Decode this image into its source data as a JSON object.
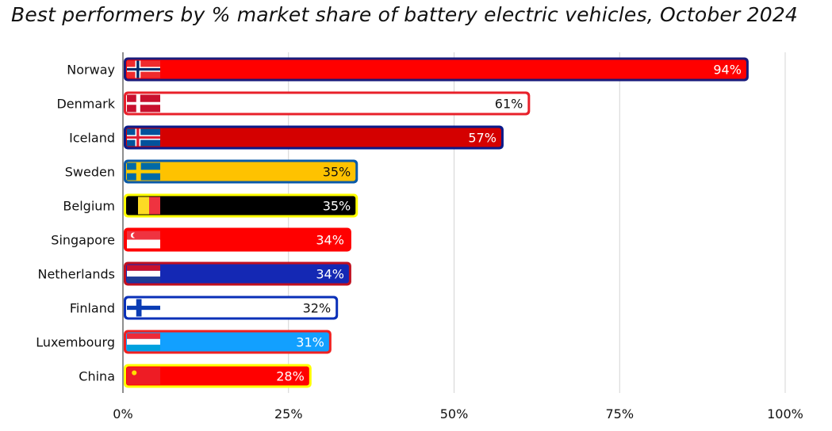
{
  "chart_data": {
    "type": "bar",
    "orientation": "horizontal",
    "title": "Best performers by % market share of battery electric vehicles, October 2024",
    "xlabel": "",
    "ylabel": "",
    "xlim": [
      0,
      100
    ],
    "grid": true,
    "legend": "none",
    "x_ticks": [
      0,
      25,
      50,
      75,
      100
    ],
    "x_tick_labels": [
      "0%",
      "25%",
      "50%",
      "75%",
      "100%"
    ],
    "categories": [
      "Norway",
      "Denmark",
      "Iceland",
      "Sweden",
      "Belgium",
      "Singapore",
      "Netherlands",
      "Finland",
      "Luxembourg",
      "China"
    ],
    "values": [
      94,
      61,
      57,
      35,
      35,
      34,
      34,
      32,
      31,
      28
    ],
    "value_labels": [
      "94%",
      "61%",
      "57%",
      "35%",
      "35%",
      "34%",
      "34%",
      "32%",
      "31%",
      "28%"
    ],
    "bar_styles": [
      {
        "fill": "#ff0000",
        "border": "#1a1a7a",
        "text": "#ffffff",
        "flag": "norway"
      },
      {
        "fill": "#ffffff",
        "border": "#e8202a",
        "text": "#111111",
        "flag": "denmark"
      },
      {
        "fill": "#d40000",
        "border": "#0a1a8a",
        "text": "#ffffff",
        "flag": "iceland"
      },
      {
        "fill": "#fec200",
        "border": "#0a5aa8",
        "text": "#111111",
        "flag": "sweden"
      },
      {
        "fill": "#000000",
        "border": "#ffff00",
        "text": "#ffffff",
        "flag": "belgium"
      },
      {
        "fill": "#ff0000",
        "border": "#ff0000",
        "text": "#ffffff",
        "flag": "singapore"
      },
      {
        "fill": "#1428b4",
        "border": "#c01020",
        "text": "#ffffff",
        "flag": "netherlands"
      },
      {
        "fill": "#ffffff",
        "border": "#0a30b8",
        "text": "#111111",
        "flag": "finland"
      },
      {
        "fill": "#12a0ff",
        "border": "#f02020",
        "text": "#ffffff",
        "flag": "luxembourg"
      },
      {
        "fill": "#ff0000",
        "border": "#ffff00",
        "text": "#ffffff",
        "flag": "china"
      }
    ]
  }
}
